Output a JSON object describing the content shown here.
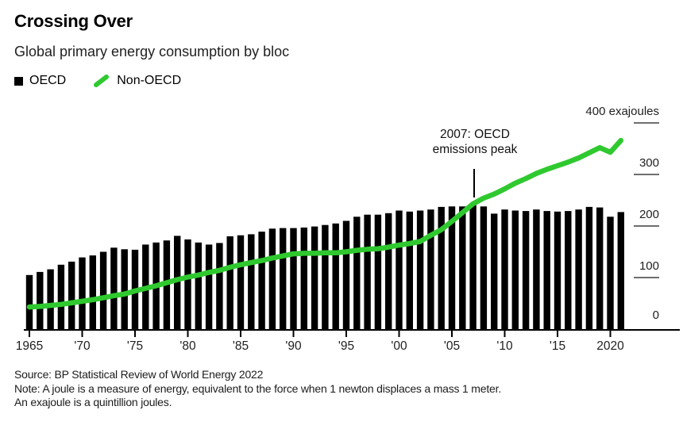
{
  "header": {
    "title": "Crossing Over",
    "subtitle": "Global primary energy consumption by bloc"
  },
  "legend": [
    {
      "label": "OECD",
      "marker": "black-square",
      "color": "#000000"
    },
    {
      "label": "Non-OECD",
      "marker": "green-slash",
      "color": "#2fc92f"
    }
  ],
  "annotation": {
    "line1": "2007: OECD",
    "line2": "emissions peak",
    "year": 2007
  },
  "footer": {
    "source": "Source: BP Statistical Review of World Energy 2022",
    "note1": "Note: A joule is a measure of energy, equivalent to the force when 1 newton displaces a mass 1 meter.",
    "note2": "An exajoule is a quintillion joules."
  },
  "chart_data": {
    "type": "bar",
    "title": "Crossing Over",
    "subtitle": "Global primary energy consumption by bloc",
    "unit": "exajoules",
    "ylim": [
      0,
      400
    ],
    "grid": false,
    "legend_position": "top-left",
    "x": [
      1965,
      1966,
      1967,
      1968,
      1969,
      1970,
      1971,
      1972,
      1973,
      1974,
      1975,
      1976,
      1977,
      1978,
      1979,
      1980,
      1981,
      1982,
      1983,
      1984,
      1985,
      1986,
      1987,
      1988,
      1989,
      1990,
      1991,
      1992,
      1993,
      1994,
      1995,
      1996,
      1997,
      1998,
      1999,
      2000,
      2001,
      2002,
      2003,
      2004,
      2005,
      2006,
      2007,
      2008,
      2009,
      2010,
      2011,
      2012,
      2013,
      2014,
      2015,
      2016,
      2017,
      2018,
      2019,
      2020,
      2021
    ],
    "series": [
      {
        "name": "OECD",
        "type": "bar",
        "color": "#000000",
        "values": [
          105,
          111,
          116,
          125,
          131,
          139,
          143,
          150,
          158,
          155,
          154,
          164,
          168,
          172,
          181,
          174,
          168,
          164,
          167,
          180,
          182,
          184,
          189,
          195,
          196,
          196,
          197,
          199,
          202,
          205,
          210,
          218,
          222,
          222,
          225,
          230,
          228,
          230,
          232,
          237,
          238,
          238,
          241,
          238,
          224,
          232,
          230,
          229,
          232,
          229,
          228,
          229,
          232,
          237,
          236,
          218,
          227
        ]
      },
      {
        "name": "Non-OECD",
        "type": "line",
        "color": "#2fc92f",
        "values": [
          43,
          44,
          46,
          48,
          51,
          54,
          57,
          61,
          65,
          68,
          74,
          79,
          84,
          90,
          96,
          101,
          105,
          110,
          114,
          120,
          125,
          129,
          133,
          138,
          142,
          146,
          147,
          147,
          148,
          148,
          150,
          153,
          155,
          156,
          159,
          163,
          166,
          170,
          182,
          193,
          209,
          226,
          243,
          254,
          262,
          272,
          283,
          292,
          302,
          310,
          317,
          324,
          332,
          342,
          352,
          343,
          366
        ]
      }
    ],
    "y_ticks": [
      {
        "value": 0,
        "label": "0"
      },
      {
        "value": 100,
        "label": "100"
      },
      {
        "value": 200,
        "label": "200"
      },
      {
        "value": 300,
        "label": "300"
      },
      {
        "value": 400,
        "label": "400 exajoules"
      }
    ],
    "x_ticks": [
      {
        "value": 1965,
        "label": "1965"
      },
      {
        "value": 1970,
        "label": "'70"
      },
      {
        "value": 1975,
        "label": "'75"
      },
      {
        "value": 1980,
        "label": "'80"
      },
      {
        "value": 1985,
        "label": "'85"
      },
      {
        "value": 1990,
        "label": "'90"
      },
      {
        "value": 1995,
        "label": "'95"
      },
      {
        "value": 2000,
        "label": "'00"
      },
      {
        "value": 2005,
        "label": "'05"
      },
      {
        "value": 2010,
        "label": "'10"
      },
      {
        "value": 2015,
        "label": "'15"
      },
      {
        "value": 2020,
        "label": "2020"
      }
    ]
  }
}
